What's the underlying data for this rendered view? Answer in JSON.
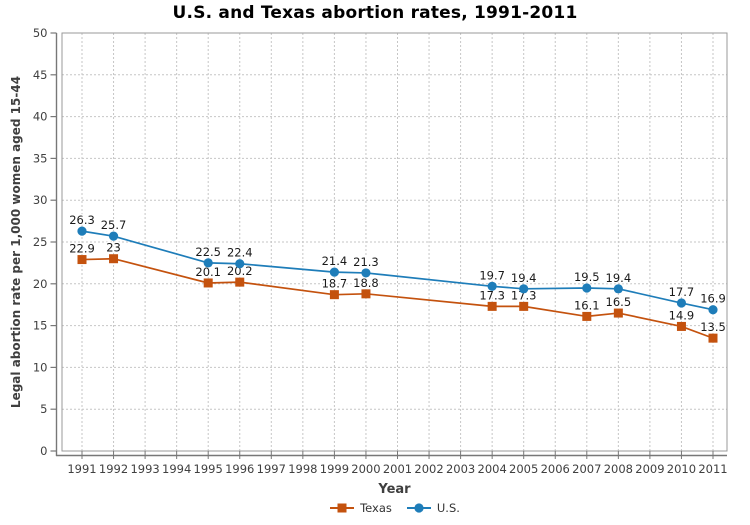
{
  "chart_data": {
    "type": "line",
    "title": "U.S. and Texas abortion rates, 1991-2011",
    "xlabel": "Year",
    "ylabel": "Legal abortion rate per 1,000 women aged 15-44",
    "ylim": [
      0,
      50
    ],
    "ytick_step": 5,
    "grid": true,
    "legend_position": "bottom",
    "categories": [
      1991,
      1992,
      1993,
      1994,
      1995,
      1996,
      1997,
      1998,
      1999,
      2000,
      2001,
      2002,
      2003,
      2004,
      2005,
      2006,
      2007,
      2008,
      2009,
      2010,
      2011
    ],
    "series": [
      {
        "name": "Texas",
        "marker": "square",
        "color": "#c4520e",
        "values": [
          22.9,
          23,
          null,
          null,
          20.1,
          20.2,
          null,
          null,
          18.7,
          18.8,
          null,
          null,
          null,
          17.3,
          17.3,
          null,
          16.1,
          16.5,
          null,
          14.9,
          13.5
        ]
      },
      {
        "name": "U.S.",
        "marker": "circle",
        "color": "#1e7db9",
        "values": [
          26.3,
          25.7,
          null,
          null,
          22.5,
          22.4,
          null,
          null,
          21.4,
          21.3,
          null,
          null,
          null,
          19.7,
          19.4,
          null,
          19.5,
          19.4,
          null,
          17.7,
          16.9
        ]
      }
    ],
    "style": {
      "grid_color": "#c6c6c6",
      "border_color": "#999999",
      "axis_color": "#777777",
      "tick_label_color": "#404040",
      "value_label_color": "#1a1a1a"
    }
  }
}
